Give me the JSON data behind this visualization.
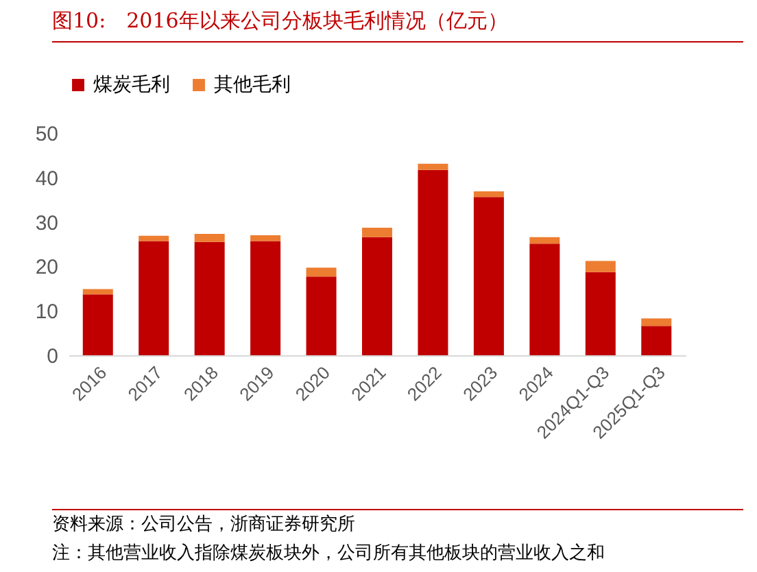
{
  "chart_data": {
    "type": "bar",
    "title": "图10:　2016年以来公司分板块毛利情况（亿元）",
    "categories": [
      "2016",
      "2017",
      "2018",
      "2019",
      "2020",
      "2021",
      "2022",
      "2023",
      "2024",
      "2024Q1-Q3",
      "2025Q1-Q3"
    ],
    "series": [
      {
        "name": "煤炭毛利",
        "color": "#c00000",
        "values": [
          13.7,
          25.7,
          25.5,
          25.7,
          17.7,
          26.6,
          41.7,
          35.6,
          25.1,
          18.7,
          6.6
        ]
      },
      {
        "name": "其他毛利",
        "color": "#ed7d31",
        "values": [
          1.2,
          1.2,
          1.8,
          1.3,
          2.0,
          2.1,
          1.4,
          1.3,
          1.5,
          2.5,
          1.7
        ]
      }
    ],
    "stacked": true,
    "ylim": [
      0,
      50
    ],
    "yticks": [
      0,
      10,
      20,
      30,
      40,
      50
    ],
    "grid": false,
    "legend": "top",
    "annotations": [
      "资料来源：公司公告，浙商证券研究所",
      "注：其他营业收入指除煤炭板块外，公司所有其他板块的营业收入之和"
    ]
  }
}
